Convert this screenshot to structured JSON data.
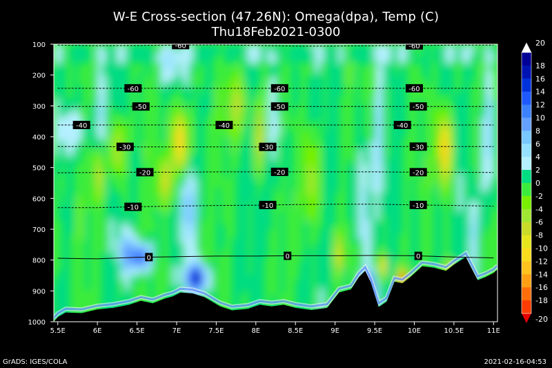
{
  "title": "W-E Cross-section (47.26N): Omega(dpa), Temp (C)",
  "subtitle": "Thu18Feb2021-0300",
  "credit": "GrADS: IGES/COLA",
  "timestamp": "2021-02-16-04:53",
  "chart_data": {
    "type": "heatmap",
    "x_ticks": [
      "5.5E",
      "6E",
      "6.5E",
      "7E",
      "7.5E",
      "8E",
      "8.5E",
      "9E",
      "9.5E",
      "10E",
      "10.5E",
      "11E"
    ],
    "x_values": [
      5.5,
      6,
      6.5,
      7,
      7.5,
      8,
      8.5,
      9,
      9.5,
      10,
      10.5,
      11
    ],
    "xlim": [
      5.45,
      11.05
    ],
    "y_ticks": [
      "100",
      "200",
      "300",
      "400",
      "500",
      "600",
      "700",
      "800",
      "900",
      "1000"
    ],
    "y_values": [
      100,
      200,
      300,
      400,
      500,
      600,
      700,
      800,
      900,
      1000
    ],
    "ylim": [
      100,
      1000
    ],
    "colorbar": {
      "labels": [
        "20",
        "18",
        "16",
        "14",
        "12",
        "10",
        "8",
        "6",
        "4",
        "2",
        "0",
        "-2",
        "-4",
        "-6",
        "-8",
        "-10",
        "-12",
        "-14",
        "-16",
        "-18",
        "-20"
      ],
      "colors": [
        "#000096",
        "#0014b4",
        "#0032dc",
        "#1e5aff",
        "#3c82ff",
        "#64a0ff",
        "#78c8ff",
        "#96e1ff",
        "#b4f0ff",
        "#00dc82",
        "#3cec3c",
        "#78f000",
        "#a0e632",
        "#c8dc28",
        "#e6e61e",
        "#fadc1e",
        "#ffc31e",
        "#ffa014",
        "#ff6e0a",
        "#ff3c00"
      ],
      "top_cap": "#ffffff",
      "bottom_cap": "#e60000"
    },
    "isotherms": [
      {
        "label": "-60",
        "p": [
          103,
          105,
          104,
          103,
          102,
          104,
          106,
          106,
          105,
          104,
          103,
          103
        ],
        "labels_at": [
          7.05,
          10.0
        ]
      },
      {
        "label": "-60",
        "p": [
          243,
          243,
          243,
          243,
          243,
          243,
          243,
          243,
          243,
          243,
          243,
          243
        ],
        "labels_at": [
          6.45,
          8.3,
          10.0
        ]
      },
      {
        "label": "-50",
        "p": [
          302,
          302,
          302,
          302,
          302,
          302,
          302,
          302,
          302,
          302,
          302,
          302
        ],
        "labels_at": [
          6.55,
          8.3,
          10.05
        ]
      },
      {
        "label": "-40",
        "p": [
          362,
          362,
          362,
          362,
          362,
          362,
          362,
          362,
          362,
          362,
          362,
          362
        ],
        "labels_at": [
          5.8,
          7.6,
          9.85
        ]
      },
      {
        "label": "-30",
        "p": [
          432,
          432,
          433,
          433,
          433,
          433,
          433,
          433,
          432,
          432,
          432,
          432
        ],
        "labels_at": [
          6.35,
          8.15,
          10.05
        ]
      },
      {
        "label": "-20",
        "p": [
          517,
          516,
          515,
          515,
          514,
          514,
          514,
          514,
          514,
          515,
          515,
          516
        ],
        "labels_at": [
          6.6,
          8.3,
          10.05
        ]
      },
      {
        "label": "-10",
        "p": [
          630,
          630,
          627,
          625,
          623,
          622,
          620,
          619,
          619,
          621,
          623,
          625
        ],
        "labels_at": [
          6.45,
          8.15,
          10.05
        ]
      },
      {
        "label": "0",
        "p": [
          794,
          796,
          791,
          789,
          787,
          787,
          786,
          786,
          785,
          786,
          790,
          793
        ],
        "labels_at": [
          6.65,
          8.4,
          10.05
        ]
      }
    ],
    "terrain": [
      [
        5.45,
        1000
      ],
      [
        5.5,
        985
      ],
      [
        5.6,
        970
      ],
      [
        5.8,
        972
      ],
      [
        6.0,
        960
      ],
      [
        6.2,
        955
      ],
      [
        6.4,
        945
      ],
      [
        6.55,
        932
      ],
      [
        6.7,
        940
      ],
      [
        6.85,
        925
      ],
      [
        6.95,
        918
      ],
      [
        7.05,
        905
      ],
      [
        7.2,
        908
      ],
      [
        7.35,
        920
      ],
      [
        7.55,
        950
      ],
      [
        7.7,
        963
      ],
      [
        7.9,
        958
      ],
      [
        8.05,
        945
      ],
      [
        8.2,
        950
      ],
      [
        8.35,
        945
      ],
      [
        8.5,
        955
      ],
      [
        8.7,
        962
      ],
      [
        8.9,
        955
      ],
      [
        9.05,
        905
      ],
      [
        9.2,
        895
      ],
      [
        9.3,
        855
      ],
      [
        9.38,
        835
      ],
      [
        9.45,
        872
      ],
      [
        9.55,
        952
      ],
      [
        9.65,
        935
      ],
      [
        9.75,
        870
      ],
      [
        9.85,
        875
      ],
      [
        9.95,
        855
      ],
      [
        10.1,
        820
      ],
      [
        10.25,
        825
      ],
      [
        10.4,
        835
      ],
      [
        10.5,
        815
      ],
      [
        10.65,
        790
      ],
      [
        10.8,
        865
      ],
      [
        10.9,
        855
      ],
      [
        11.0,
        842
      ],
      [
        11.05,
        830
      ],
      [
        11.05,
        1000
      ]
    ],
    "features": [
      {
        "x": 6.55,
        "p": 790,
        "v": 14,
        "rx": 0.13,
        "rp": 45
      },
      {
        "x": 7.25,
        "p": 860,
        "v": 16,
        "rx": 0.14,
        "rp": 45
      },
      {
        "x": 7.15,
        "p": 630,
        "v": 8,
        "rx": 0.08,
        "rp": 130
      },
      {
        "x": 6.35,
        "p": 770,
        "v": 8,
        "rx": 0.08,
        "rp": 70
      },
      {
        "x": 9.42,
        "p": 900,
        "v": 16,
        "rx": 0.1,
        "rp": 60
      },
      {
        "x": 9.35,
        "p": 620,
        "v": 6,
        "rx": 0.07,
        "rp": 210
      },
      {
        "x": 9.55,
        "p": 420,
        "v": 5,
        "rx": 0.06,
        "rp": 220
      },
      {
        "x": 10.95,
        "p": 400,
        "v": 6,
        "rx": 0.08,
        "rp": 220
      },
      {
        "x": 10.75,
        "p": 710,
        "v": 5,
        "rx": 0.07,
        "rp": 120
      },
      {
        "x": 5.65,
        "p": 380,
        "v": 4,
        "rx": 0.25,
        "rp": 80
      },
      {
        "x": 6.05,
        "p": 330,
        "v": 4,
        "rx": 0.07,
        "rp": 130
      },
      {
        "x": 7.05,
        "p": 420,
        "v": -14,
        "rx": 0.09,
        "rp": 100
      },
      {
        "x": 6.85,
        "p": 540,
        "v": -8,
        "rx": 0.09,
        "rp": 70
      },
      {
        "x": 10.38,
        "p": 440,
        "v": -14,
        "rx": 0.08,
        "rp": 110
      },
      {
        "x": 8.05,
        "p": 400,
        "v": -10,
        "rx": 0.05,
        "rp": 110
      },
      {
        "x": 6.25,
        "p": 440,
        "v": -8,
        "rx": 0.08,
        "rp": 100
      },
      {
        "x": 9.85,
        "p": 860,
        "v": -22,
        "rx": 0.05,
        "rp": 30
      },
      {
        "x": 9.6,
        "p": 820,
        "v": -12,
        "rx": 0.05,
        "rp": 40
      },
      {
        "x": 10.45,
        "p": 840,
        "v": -12,
        "rx": 0.05,
        "rp": 40
      },
      {
        "x": 7.75,
        "p": 300,
        "v": -6,
        "rx": 0.12,
        "rp": 100
      },
      {
        "x": 8.7,
        "p": 530,
        "v": -6,
        "rx": 0.1,
        "rp": 150
      },
      {
        "x": 8.25,
        "p": 360,
        "v": 4,
        "rx": 0.08,
        "rp": 180
      },
      {
        "x": 6.9,
        "p": 170,
        "v": 4,
        "rx": 0.15,
        "rp": 60
      },
      {
        "x": 9.05,
        "p": 780,
        "v": -10,
        "rx": 0.05,
        "rp": 60
      },
      {
        "x": 6.0,
        "p": 520,
        "v": -7,
        "rx": 0.07,
        "rp": 90
      }
    ]
  }
}
